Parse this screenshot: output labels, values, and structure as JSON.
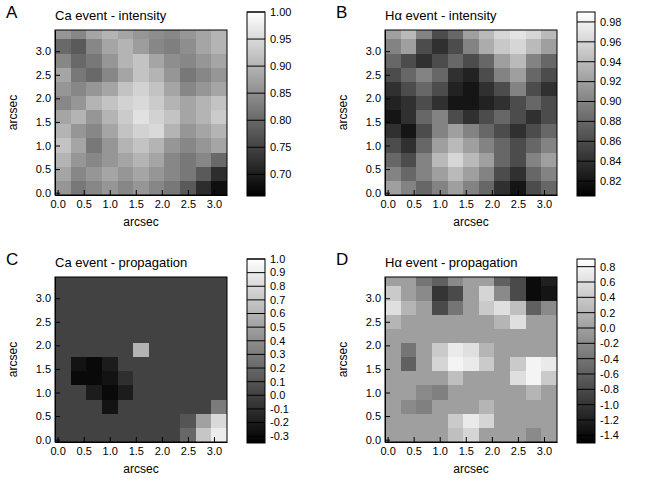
{
  "chart_data": [
    {
      "type": "heatmap",
      "panel": "A",
      "title": "Ca event - intensity",
      "xlabel": "arcsec",
      "ylabel": "arcsec",
      "xlim": [
        -0.05,
        3.25
      ],
      "ylim": [
        -0.05,
        3.45
      ],
      "xticks": [
        {
          "value": 0,
          "label": "0.0"
        },
        0.5,
        {
          "value": 1,
          "label": "1.0"
        },
        1.5,
        {
          "value": 2,
          "label": "2.0"
        },
        2.5,
        {
          "value": 3,
          "label": "3.0"
        }
      ],
      "yticks": [
        {
          "value": 0,
          "label": "0.0"
        },
        0.5,
        {
          "value": 1,
          "label": "1.0"
        },
        1.5,
        {
          "value": 2,
          "label": "2.0"
        },
        2.5,
        {
          "value": 3,
          "label": "3.0"
        }
      ],
      "x": [
        0.1,
        0.4,
        0.7,
        1.0,
        1.3,
        1.6,
        1.9,
        2.2,
        2.5,
        2.8,
        3.1
      ],
      "y": [
        3.4,
        3.1,
        2.8,
        2.5,
        2.2,
        1.9,
        1.6,
        1.3,
        1.0,
        0.7,
        0.4,
        0.1
      ],
      "values": [
        [
          0.86,
          0.84,
          0.88,
          0.9,
          0.88,
          0.86,
          0.85,
          0.84,
          0.86,
          0.88,
          0.9
        ],
        [
          0.8,
          0.78,
          0.84,
          0.88,
          0.9,
          0.87,
          0.84,
          0.83,
          0.85,
          0.88,
          0.9
        ],
        [
          0.84,
          0.8,
          0.82,
          0.86,
          0.9,
          0.92,
          0.88,
          0.85,
          0.84,
          0.86,
          0.88
        ],
        [
          0.88,
          0.82,
          0.8,
          0.84,
          0.88,
          0.92,
          0.9,
          0.86,
          0.82,
          0.84,
          0.86
        ],
        [
          0.86,
          0.84,
          0.86,
          0.88,
          0.92,
          0.94,
          0.92,
          0.88,
          0.84,
          0.86,
          0.88
        ],
        [
          0.84,
          0.86,
          0.9,
          0.92,
          0.94,
          0.95,
          0.93,
          0.9,
          0.88,
          0.9,
          0.92
        ],
        [
          0.88,
          0.9,
          0.86,
          0.9,
          0.93,
          0.96,
          0.94,
          0.92,
          0.88,
          0.9,
          0.93
        ],
        [
          0.9,
          0.86,
          0.84,
          0.88,
          0.92,
          0.94,
          0.95,
          0.9,
          0.86,
          0.88,
          0.9
        ],
        [
          0.92,
          0.88,
          0.82,
          0.86,
          0.9,
          0.92,
          0.9,
          0.86,
          0.84,
          0.86,
          0.88
        ],
        [
          0.9,
          0.86,
          0.84,
          0.86,
          0.88,
          0.9,
          0.88,
          0.84,
          0.82,
          0.84,
          0.8
        ],
        [
          0.88,
          0.84,
          0.86,
          0.88,
          0.86,
          0.88,
          0.86,
          0.84,
          0.82,
          0.78,
          0.72
        ],
        [
          0.86,
          0.82,
          0.84,
          0.86,
          0.84,
          0.86,
          0.84,
          0.82,
          0.78,
          0.72,
          0.68
        ]
      ],
      "colorbar_range": [
        0.66,
        1.0
      ],
      "colorbar_ticks": [
        {
          "value": 0.7,
          "label": "0.70"
        },
        0.75,
        {
          "value": 0.8,
          "label": "0.80"
        },
        0.85,
        {
          "value": 0.9,
          "label": "0.90"
        },
        0.95,
        {
          "value": 1,
          "label": "1.00"
        }
      ]
    },
    {
      "type": "heatmap",
      "panel": "B",
      "title": "Hα event - intensity",
      "xlabel": "arcsec",
      "ylabel": "arcsec",
      "xlim": [
        -0.05,
        3.25
      ],
      "ylim": [
        -0.05,
        3.45
      ],
      "xticks": [
        {
          "value": 0,
          "label": "0.0"
        },
        0.5,
        {
          "value": 1,
          "label": "1.0"
        },
        1.5,
        {
          "value": 2,
          "label": "2.0"
        },
        2.5,
        {
          "value": 3,
          "label": "3.0"
        }
      ],
      "yticks": [
        {
          "value": 0,
          "label": "0.0"
        },
        0.5,
        {
          "value": 1,
          "label": "1.0"
        },
        1.5,
        {
          "value": 2,
          "label": "2.0"
        },
        2.5,
        {
          "value": 3,
          "label": "3.0"
        }
      ],
      "x": [
        0.1,
        0.4,
        0.7,
        1.0,
        1.3,
        1.6,
        1.9,
        2.2,
        2.5,
        2.8,
        3.1
      ],
      "y": [
        3.4,
        3.1,
        2.8,
        2.5,
        2.2,
        1.9,
        1.6,
        1.3,
        1.0,
        0.7,
        0.4,
        0.1
      ],
      "values": [
        [
          0.92,
          0.94,
          0.9,
          0.86,
          0.88,
          0.92,
          0.94,
          0.96,
          0.97,
          0.96,
          0.94
        ],
        [
          0.9,
          0.92,
          0.86,
          0.84,
          0.86,
          0.9,
          0.93,
          0.95,
          0.96,
          0.94,
          0.92
        ],
        [
          0.88,
          0.86,
          0.84,
          0.86,
          0.88,
          0.86,
          0.88,
          0.92,
          0.94,
          0.9,
          0.88
        ],
        [
          0.86,
          0.88,
          0.9,
          0.88,
          0.84,
          0.83,
          0.86,
          0.9,
          0.92,
          0.88,
          0.86
        ],
        [
          0.84,
          0.86,
          0.88,
          0.86,
          0.83,
          0.82,
          0.84,
          0.86,
          0.9,
          0.86,
          0.84
        ],
        [
          0.83,
          0.84,
          0.86,
          0.84,
          0.82,
          0.82,
          0.83,
          0.84,
          0.86,
          0.88,
          0.86
        ],
        [
          0.82,
          0.84,
          0.88,
          0.9,
          0.86,
          0.84,
          0.86,
          0.88,
          0.86,
          0.84,
          0.86
        ],
        [
          0.84,
          0.82,
          0.86,
          0.9,
          0.92,
          0.9,
          0.88,
          0.86,
          0.84,
          0.86,
          0.88
        ],
        [
          0.86,
          0.84,
          0.88,
          0.92,
          0.94,
          0.92,
          0.9,
          0.88,
          0.86,
          0.88,
          0.9
        ],
        [
          0.88,
          0.86,
          0.9,
          0.94,
          0.96,
          0.94,
          0.92,
          0.88,
          0.86,
          0.9,
          0.92
        ],
        [
          0.9,
          0.88,
          0.9,
          0.92,
          0.94,
          0.92,
          0.9,
          0.86,
          0.84,
          0.88,
          0.9
        ],
        [
          0.92,
          0.9,
          0.88,
          0.9,
          0.92,
          0.9,
          0.88,
          0.84,
          0.82,
          0.86,
          0.88
        ]
      ],
      "colorbar_range": [
        0.805,
        0.99
      ],
      "colorbar_ticks": [
        0.82,
        0.84,
        0.86,
        0.88,
        {
          "value": 0.9,
          "label": "0.90"
        },
        0.92,
        0.94,
        0.96,
        0.98
      ]
    },
    {
      "type": "heatmap",
      "panel": "C",
      "title": "Ca event - propagation",
      "xlabel": "arcsec",
      "ylabel": "arcsec",
      "xlim": [
        -0.05,
        3.25
      ],
      "ylim": [
        -0.05,
        3.45
      ],
      "xticks": [
        {
          "value": 0,
          "label": "0.0"
        },
        0.5,
        {
          "value": 1,
          "label": "1.0"
        },
        1.5,
        {
          "value": 2,
          "label": "2.0"
        },
        2.5,
        {
          "value": 3,
          "label": "3.0"
        }
      ],
      "yticks": [
        {
          "value": 0,
          "label": "0.0"
        },
        0.5,
        {
          "value": 1,
          "label": "1.0"
        },
        1.5,
        {
          "value": 2,
          "label": "2.0"
        },
        2.5,
        {
          "value": 3,
          "label": "3.0"
        }
      ],
      "x": [
        0.1,
        0.4,
        0.7,
        1.0,
        1.3,
        1.6,
        1.9,
        2.2,
        2.5,
        2.8,
        3.1
      ],
      "y": [
        3.4,
        3.1,
        2.8,
        2.5,
        2.2,
        1.9,
        1.6,
        1.3,
        1.0,
        0.7,
        0.4,
        0.1
      ],
      "values": [
        [
          0,
          0,
          0,
          0,
          0,
          0,
          0,
          0,
          0,
          0,
          0
        ],
        [
          0,
          0,
          0,
          0,
          0,
          0,
          0,
          0,
          0,
          0,
          0
        ],
        [
          0,
          0,
          0,
          0,
          0,
          0,
          0,
          0,
          0,
          0,
          0
        ],
        [
          0,
          0,
          0,
          0,
          0,
          0,
          0,
          0,
          0,
          0,
          0
        ],
        [
          0,
          0,
          0,
          0,
          0,
          0,
          0,
          0,
          0,
          0,
          0
        ],
        [
          0,
          0,
          0,
          0,
          0,
          0.6,
          0,
          0,
          0,
          0,
          0
        ],
        [
          0,
          -0.25,
          -0.3,
          -0.2,
          0,
          0,
          0,
          0,
          0,
          0,
          0
        ],
        [
          0,
          -0.3,
          -0.3,
          -0.25,
          -0.1,
          0,
          0,
          0,
          0,
          0,
          0
        ],
        [
          0,
          0,
          -0.2,
          -0.3,
          -0.2,
          0,
          0,
          0,
          0,
          0,
          0
        ],
        [
          0,
          0,
          0,
          -0.25,
          0,
          0,
          0,
          0,
          0,
          0,
          0.3
        ],
        [
          0,
          0,
          0,
          0,
          0,
          0,
          0,
          0,
          0.1,
          0.5,
          0.8
        ],
        [
          0,
          0,
          0,
          0,
          0,
          0,
          0,
          0,
          0.2,
          0.7,
          0.9
        ]
      ],
      "colorbar_range": [
        -0.35,
        1.0
      ],
      "colorbar_ticks": [
        -0.3,
        -0.2,
        -0.1,
        {
          "value": 0,
          "label": "0.0"
        },
        0.1,
        0.2,
        0.3,
        0.4,
        0.5,
        0.6,
        0.7,
        0.8,
        0.9,
        {
          "value": 1,
          "label": "1.0"
        }
      ]
    },
    {
      "type": "heatmap",
      "panel": "D",
      "title": "Hα event - propagation",
      "xlabel": "arcsec",
      "ylabel": "arcsec",
      "xlim": [
        -0.05,
        3.25
      ],
      "ylim": [
        -0.05,
        3.45
      ],
      "xticks": [
        {
          "value": 0,
          "label": "0.0"
        },
        0.5,
        {
          "value": 1,
          "label": "1.0"
        },
        1.5,
        {
          "value": 2,
          "label": "2.0"
        },
        2.5,
        {
          "value": 3,
          "label": "3.0"
        }
      ],
      "yticks": [
        {
          "value": 0,
          "label": "0.0"
        },
        0.5,
        {
          "value": 1,
          "label": "1.0"
        },
        1.5,
        {
          "value": 2,
          "label": "2.0"
        },
        2.5,
        {
          "value": 3,
          "label": "3.0"
        }
      ],
      "x": [
        0.1,
        0.4,
        0.7,
        1.0,
        1.3,
        1.6,
        1.9,
        2.2,
        2.5,
        2.8,
        3.1
      ],
      "y": [
        3.4,
        3.1,
        2.8,
        2.5,
        2.2,
        1.9,
        1.6,
        1.3,
        1.0,
        0.7,
        0.4,
        0.1
      ],
      "values": [
        [
          0,
          0,
          -0.4,
          -0.6,
          -0.2,
          0,
          0,
          -0.6,
          -0.8,
          -1.4,
          -1.2
        ],
        [
          0.4,
          0,
          -0.2,
          -1.0,
          -0.8,
          0,
          0.5,
          -0.2,
          -0.8,
          -1.4,
          -1.3
        ],
        [
          0.6,
          0.2,
          0,
          -0.8,
          -0.4,
          0,
          0.4,
          0.6,
          0.3,
          -0.6,
          -0.2
        ],
        [
          0.2,
          0,
          0,
          0,
          0,
          0,
          0,
          0.2,
          0.6,
          0,
          0
        ],
        [
          0,
          0,
          0,
          0,
          0,
          0,
          0,
          0,
          0,
          0,
          0
        ],
        [
          0,
          -0.4,
          0,
          0.4,
          0.7,
          0.6,
          0.2,
          0,
          0,
          0,
          0
        ],
        [
          0,
          -0.6,
          0,
          0.5,
          0.8,
          0.7,
          0.4,
          0,
          0.4,
          0.8,
          0.7
        ],
        [
          0,
          0,
          0,
          0,
          0.3,
          0,
          0,
          0,
          0.6,
          0.8,
          0.4
        ],
        [
          0,
          0,
          -0.2,
          -0.3,
          0,
          0,
          0,
          0,
          0,
          0.2,
          0
        ],
        [
          0,
          -0.2,
          -0.3,
          0,
          0,
          0,
          0.2,
          0,
          0,
          0,
          0
        ],
        [
          0,
          0,
          0,
          0,
          0.4,
          0.7,
          0.5,
          0,
          0,
          0,
          0
        ],
        [
          0,
          0,
          0,
          0,
          0.3,
          0.5,
          0,
          0,
          0,
          -0.2,
          0
        ]
      ],
      "colorbar_range": [
        -1.5,
        0.9
      ],
      "colorbar_ticks": [
        -1.4,
        -1.2,
        {
          "value": -1,
          "label": "-1.0"
        },
        -0.8,
        -0.6,
        -0.4,
        -0.2,
        {
          "value": 0,
          "label": "0.0"
        },
        0.2,
        0.4,
        0.6,
        0.8
      ]
    }
  ]
}
